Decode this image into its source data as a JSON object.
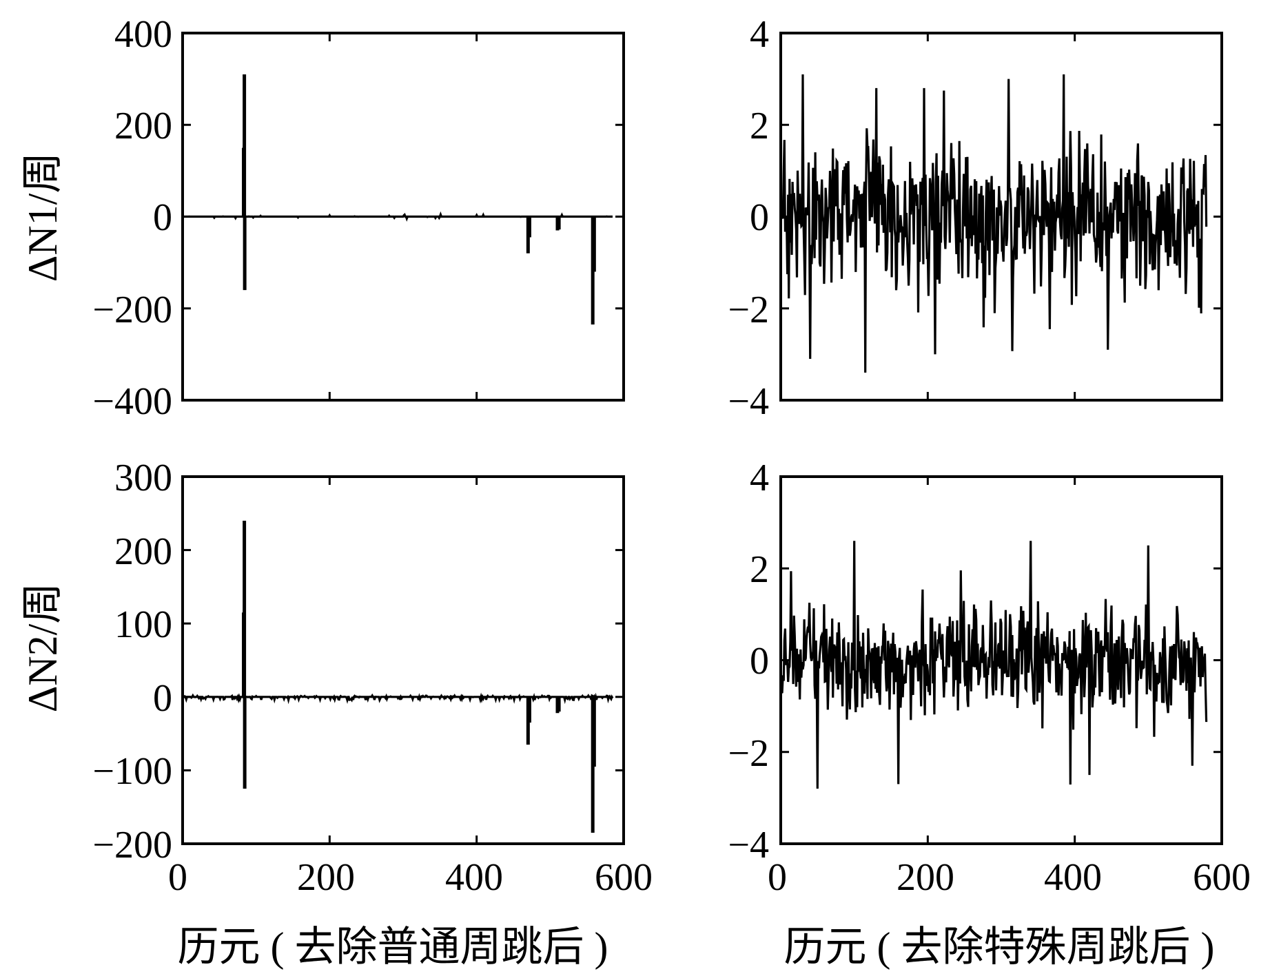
{
  "charts": [
    {
      "type": "line",
      "ylabel": "ΔN1/周",
      "xlabel": "",
      "xlim": [
        0,
        600
      ],
      "ylim": [
        -400,
        400
      ],
      "xticks": [
        "0",
        "200",
        "400",
        "600"
      ],
      "yticks": [
        "400",
        "200",
        "0",
        "−200",
        "−400"
      ],
      "baseline": 0,
      "spikes": [
        {
          "x": 83,
          "y": 150
        },
        {
          "x": 84,
          "y": 310
        },
        {
          "x": 84.5,
          "y": -160
        },
        {
          "x": 470,
          "y": -80
        },
        {
          "x": 472,
          "y": -45
        },
        {
          "x": 510,
          "y": -30
        },
        {
          "x": 512,
          "y": -28
        },
        {
          "x": 558,
          "y": -235
        },
        {
          "x": 560,
          "y": -120
        }
      ]
    },
    {
      "type": "line",
      "ylabel": "",
      "xlabel": "",
      "xlim": [
        0,
        600
      ],
      "ylim": [
        -4,
        4
      ],
      "xticks": [
        "",
        "",
        "",
        ""
      ],
      "yticks": [
        "4",
        "2",
        "0",
        "−2",
        "−4"
      ],
      "noise_n": 580,
      "noise_peaks": [
        {
          "x": 30,
          "y": 3.1
        },
        {
          "x": 40,
          "y": -3.1
        },
        {
          "x": 115,
          "y": -3.4
        },
        {
          "x": 130,
          "y": 2.8
        },
        {
          "x": 195,
          "y": 2.8
        },
        {
          "x": 210,
          "y": -3.0
        },
        {
          "x": 310,
          "y": 3.0
        },
        {
          "x": 385,
          "y": 3.1
        },
        {
          "x": 445,
          "y": -2.9
        }
      ]
    },
    {
      "type": "line",
      "ylabel": "ΔN2/周",
      "xlabel": "历元 ( 去除普通周跳后 )",
      "xlim": [
        0,
        600
      ],
      "ylim": [
        -200,
        300
      ],
      "xticks": [
        "0",
        "200",
        "400",
        "600"
      ],
      "yticks": [
        "300",
        "200",
        "100",
        "0",
        "−100",
        "−200"
      ],
      "baseline": 0,
      "spikes": [
        {
          "x": 83,
          "y": 115
        },
        {
          "x": 84,
          "y": 240
        },
        {
          "x": 84.5,
          "y": -125
        },
        {
          "x": 470,
          "y": -65
        },
        {
          "x": 472,
          "y": -35
        },
        {
          "x": 510,
          "y": -22
        },
        {
          "x": 512,
          "y": -20
        },
        {
          "x": 558,
          "y": -185
        },
        {
          "x": 560,
          "y": -95
        }
      ]
    },
    {
      "type": "line",
      "ylabel": "",
      "xlabel": "历元 ( 去除特殊周跳后 )",
      "xlim": [
        0,
        600
      ],
      "ylim": [
        -4,
        4
      ],
      "xticks": [
        "0",
        "200",
        "400",
        "600"
      ],
      "yticks": [
        "4",
        "2",
        "0",
        "−2",
        "−4"
      ],
      "noise_n": 580,
      "noise_peaks": [
        {
          "x": 50,
          "y": -2.8
        },
        {
          "x": 100,
          "y": 2.6
        },
        {
          "x": 160,
          "y": -2.7
        },
        {
          "x": 340,
          "y": 2.6
        },
        {
          "x": 420,
          "y": -2.5
        },
        {
          "x": 500,
          "y": 2.5
        },
        {
          "x": 560,
          "y": -2.3
        }
      ]
    }
  ]
}
